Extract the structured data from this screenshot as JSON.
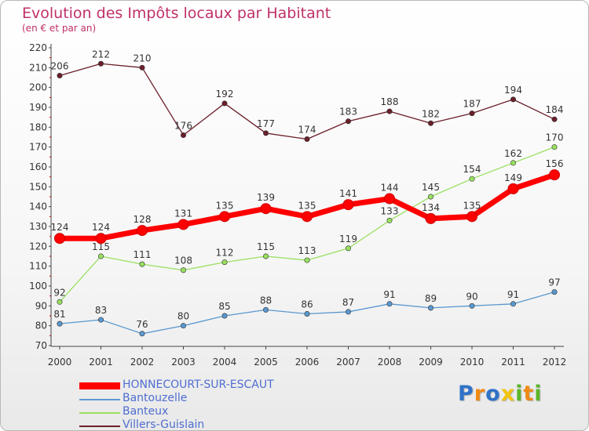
{
  "title": "Evolution des Impôts locaux par Habitant",
  "subtitle": "(en € et par an)",
  "logo": "Proxiti",
  "chart_data": {
    "type": "line",
    "x": [
      "2000",
      "2001",
      "2002",
      "2003",
      "2004",
      "2005",
      "2006",
      "2007",
      "2008",
      "2009",
      "2010",
      "2011",
      "2012"
    ],
    "ylim": [
      70,
      220
    ],
    "yticks": [
      70,
      80,
      90,
      100,
      110,
      120,
      130,
      140,
      150,
      160,
      170,
      180,
      190,
      200,
      210,
      220
    ],
    "grid": false,
    "legend_position": "bottom-left",
    "series": [
      {
        "name": "Villers-Guislain",
        "color": "#6b1f2a",
        "values": [
          206,
          212,
          210,
          176,
          192,
          177,
          174,
          183,
          188,
          182,
          187,
          194,
          184
        ]
      },
      {
        "name": "Banteux",
        "color": "#99e060",
        "values": [
          92,
          115,
          111,
          108,
          112,
          115,
          113,
          119,
          133,
          145,
          154,
          162,
          170
        ]
      },
      {
        "name": "Bantouzelle",
        "color": "#5a98cf",
        "values": [
          81,
          83,
          76,
          80,
          85,
          88,
          86,
          87,
          91,
          89,
          90,
          91,
          97
        ]
      },
      {
        "name": "HONNECOURT-SUR-ESCAUT",
        "color": "#ff0000",
        "values": [
          124,
          124,
          128,
          131,
          135,
          139,
          135,
          141,
          144,
          134,
          135,
          149,
          156
        ]
      }
    ]
  },
  "legend": [
    {
      "name": "HONNECOURT-SUR-ESCAUT",
      "color": "#ff0000"
    },
    {
      "name": "Bantouzelle",
      "color": "#5a98cf"
    },
    {
      "name": "Banteux",
      "color": "#99e060"
    },
    {
      "name": "Villers-Guislain",
      "color": "#6b1f2a"
    }
  ]
}
